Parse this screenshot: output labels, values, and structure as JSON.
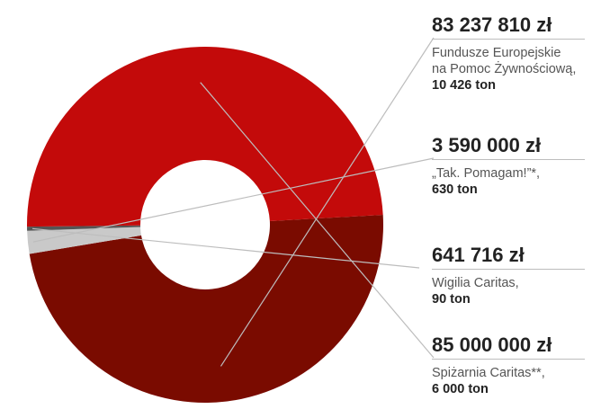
{
  "chart_data": {
    "type": "pie",
    "donut": true,
    "unit": "zł",
    "slices": [
      {
        "value": 83237810,
        "value_label": "83 237 810 zł",
        "desc": "Fundusze Europejskie\nna Pomoc Żywnościową,",
        "tons": "10 426 ton",
        "color": "#7a0b00"
      },
      {
        "value": 3590000,
        "value_label": "3 590 000 zł",
        "desc": "„Tak. Pomagam!”*,",
        "tons": "630 ton",
        "color": "#c9c9c9"
      },
      {
        "value": 641716,
        "value_label": "641 716 zł",
        "desc": "Wigilia Caritas,",
        "tons": "90 ton",
        "color": "#555555"
      },
      {
        "value": 85000000,
        "value_label": "85 000 000 zł",
        "desc": "Spiżarnia Caritas**,",
        "tons": "6 000 ton",
        "color": "#c30a0a"
      }
    ]
  }
}
